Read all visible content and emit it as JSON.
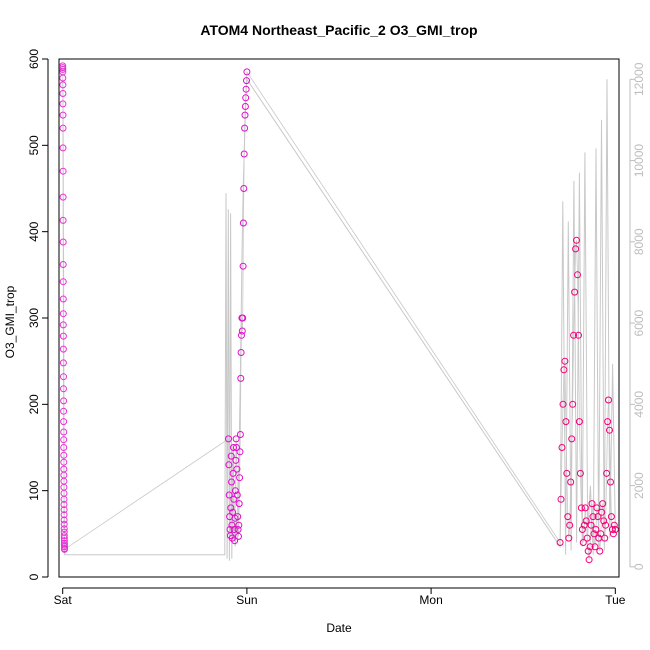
{
  "chart_data": {
    "type": "scatter",
    "title": "ATOM4 Northeast_Pacific_2 O3_GMI_trop",
    "xlabel": "Date",
    "ylabel": "O3_GMI_trop",
    "x_ticks": [
      "Sat",
      "Sun",
      "Mon",
      "Tue"
    ],
    "xlim": [
      -0.02,
      3.02
    ],
    "ylim": [
      0,
      600
    ],
    "y_ticks": [
      0,
      100,
      200,
      300,
      400,
      500,
      600
    ],
    "y2lim": [
      -250,
      12500
    ],
    "y2_ticks": [
      0,
      2000,
      4000,
      6000,
      8000,
      10000,
      12000
    ],
    "grid": false,
    "colors": {
      "points_day1": "#e833d4",
      "points_day2": "#e10ecb",
      "points_day3": "#f5007a",
      "secondary_line": "#c8c8c8"
    },
    "series": [
      {
        "axis": "left",
        "segments": [
          {
            "t0": 0.0,
            "t1": 0.01,
            "values": [
              592,
              590,
              588,
              585,
              578,
              570,
              560,
              548,
              535,
              520,
              497,
              470,
              440,
              413,
              388,
              362,
              342,
              322,
              305,
              292,
              279,
              264,
              248,
              232,
              218,
              204,
              192,
              180,
              168,
              159,
              150,
              141,
              133,
              125,
              118,
              111,
              104,
              97,
              90,
              84,
              78,
              72,
              66,
              61,
              56,
              52,
              48,
              45,
              42,
              39,
              37,
              35,
              33,
              32
            ]
          },
          {
            "t0": 0.9,
            "t1": 1.0,
            "values": [
              160,
              130,
              95,
              70,
              55,
              48,
              80,
              140,
              110,
              60,
              45,
              75,
              120,
              150,
              90,
              55,
              42,
              68,
              100,
              135,
              160,
              150,
              125,
              95,
              70,
              55,
              47,
              60,
              85,
              115,
              145,
              165,
              230,
              260,
              280,
              300,
              285,
              300,
              360,
              410,
              450,
              490,
              520,
              535,
              545,
              555,
              565,
              575,
              585
            ]
          },
          {
            "t0": 2.7,
            "t1": 3.0,
            "values": [
              40,
              90,
              150,
              200,
              240,
              250,
              180,
              120,
              70,
              45,
              60,
              110,
              160,
              200,
              280,
              330,
              380,
              390,
              350,
              280,
              180,
              120,
              80,
              55,
              40,
              60,
              80,
              65,
              45,
              30,
              20,
              35,
              60,
              85,
              70,
              50,
              35,
              55,
              80,
              70,
              45,
              30,
              50,
              75,
              85,
              65,
              45,
              60,
              120,
              180,
              205,
              170,
              110,
              70,
              55,
              50,
              60,
              55
            ]
          }
        ]
      },
      {
        "axis": "right",
        "name": "",
        "segments": [
          {
            "t0": 0.0,
            "t1": 0.01,
            "values": [
              12000,
              11900,
              11700,
              11300,
              10800,
              10100,
              9200,
              8200,
              7100,
              6000,
              4900,
              3800,
              2800,
              2000,
              1400,
              900,
              600,
              300
            ]
          },
          {
            "t0": 0.88,
            "t1": 1.0,
            "values": [
              300,
              9200,
              200,
              8800,
              150,
              8700,
              200,
              3000,
              1000,
              500,
              1200,
              600,
              2500,
              4000,
              6000,
              8000,
              9500,
              10500,
              11500,
              12000
            ]
          },
          {
            "t0": 2.7,
            "t1": 3.0,
            "values": [
              500,
              9000,
              300,
              8500,
              400,
              9500,
              600,
              9700,
              500,
              10200,
              800,
              2000,
              300,
              10300,
              500,
              11000,
              400,
              12000,
              700,
              5000,
              900
            ]
          }
        ]
      }
    ]
  }
}
